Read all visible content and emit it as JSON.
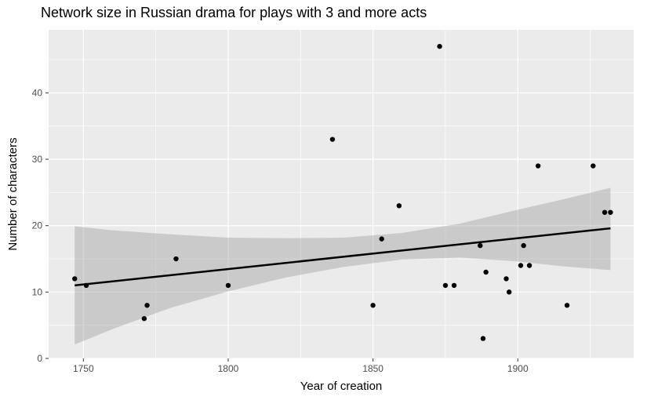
{
  "chart_data": {
    "type": "scatter",
    "title": "Network size in Russian drama for plays with 3 and more acts",
    "xlabel": "Year of creation",
    "ylabel": "Number of characters",
    "xlim": [
      1738,
      1940
    ],
    "ylim": [
      0,
      49.5
    ],
    "xticks": [
      1750,
      1800,
      1850,
      1900
    ],
    "yticks": [
      0,
      10,
      20,
      30,
      40
    ],
    "grid": true,
    "background": "#ebebeb",
    "point_color": "#000000",
    "points": [
      {
        "x": 1747,
        "y": 12
      },
      {
        "x": 1751,
        "y": 11
      },
      {
        "x": 1771,
        "y": 6
      },
      {
        "x": 1772,
        "y": 8
      },
      {
        "x": 1782,
        "y": 15
      },
      {
        "x": 1800,
        "y": 11
      },
      {
        "x": 1836,
        "y": 33
      },
      {
        "x": 1850,
        "y": 8
      },
      {
        "x": 1853,
        "y": 18
      },
      {
        "x": 1859,
        "y": 23
      },
      {
        "x": 1873,
        "y": 47
      },
      {
        "x": 1875,
        "y": 11
      },
      {
        "x": 1878,
        "y": 11
      },
      {
        "x": 1887,
        "y": 17
      },
      {
        "x": 1888,
        "y": 3
      },
      {
        "x": 1889,
        "y": 13
      },
      {
        "x": 1896,
        "y": 12
      },
      {
        "x": 1897,
        "y": 10
      },
      {
        "x": 1901,
        "y": 14
      },
      {
        "x": 1902,
        "y": 17
      },
      {
        "x": 1904,
        "y": 14
      },
      {
        "x": 1907,
        "y": 29
      },
      {
        "x": 1917,
        "y": 8
      },
      {
        "x": 1926,
        "y": 29
      },
      {
        "x": 1930,
        "y": 22
      },
      {
        "x": 1932,
        "y": 22
      }
    ],
    "trend_line": {
      "x": [
        1747,
        1932
      ],
      "y": [
        11.0,
        19.6
      ],
      "color": "#000000"
    },
    "confidence_band": {
      "color": "#999999",
      "x": [
        1747,
        1760,
        1780,
        1800,
        1820,
        1840,
        1860,
        1880,
        1900,
        1915,
        1932
      ],
      "lower": [
        2.1,
        4.4,
        7.6,
        10.1,
        12.2,
        13.8,
        14.9,
        15.2,
        14.6,
        13.9,
        13.3
      ],
      "upper": [
        19.9,
        19.3,
        18.7,
        18.2,
        18.1,
        18.2,
        18.9,
        20.3,
        22.4,
        23.9,
        25.7
      ]
    }
  }
}
